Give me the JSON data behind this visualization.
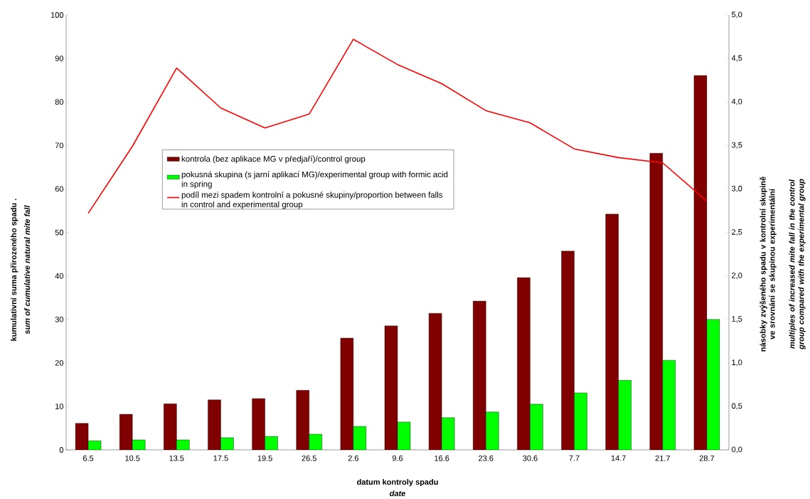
{
  "chart_data": {
    "type": "bar",
    "categories": [
      "6.5",
      "10.5",
      "13.5",
      "17.5",
      "19.5",
      "26.5",
      "2.6",
      "9.6",
      "16.6",
      "23.6",
      "30.6",
      "7.7",
      "14.7",
      "21.7",
      "28.7"
    ],
    "series": [
      {
        "name": "kontrola (bez aplikace MG v předjaří)/control group",
        "color": "#800000",
        "values": [
          6.1,
          8.2,
          10.6,
          11.5,
          11.8,
          13.7,
          25.7,
          28.5,
          31.4,
          34.2,
          39.6,
          45.7,
          54.2,
          68.2,
          86.1
        ]
      },
      {
        "name": "pokusná skupina (s jarní aplikací MG)/experimental group with formic acid in spring",
        "color": "#00ff00",
        "values": [
          2.1,
          2.3,
          2.3,
          2.8,
          3.1,
          3.6,
          5.4,
          6.4,
          7.4,
          8.7,
          10.5,
          13.1,
          16.0,
          20.6,
          30.0
        ]
      },
      {
        "name": "podíl mezi spadem kontrolní a pokusné skupiny/proportion between falls in control and experimental group",
        "type": "line",
        "axis": "y2",
        "color": "#ff0000",
        "values": [
          2.72,
          3.49,
          4.39,
          3.93,
          3.7,
          3.86,
          4.72,
          4.43,
          4.21,
          3.9,
          3.76,
          3.46,
          3.36,
          3.3,
          2.86
        ]
      }
    ],
    "ylim": [
      0,
      100
    ],
    "yticks": [
      0,
      10,
      20,
      30,
      40,
      50,
      60,
      70,
      80,
      90,
      100
    ],
    "y2lim": [
      0,
      5
    ],
    "y2ticks": [
      {
        "value": 0,
        "label": "0,0"
      },
      {
        "value": 0.5,
        "label": "0,5"
      },
      {
        "value": 1,
        "label": "1,0"
      },
      {
        "value": 1.5,
        "label": "1,5"
      },
      {
        "value": 2,
        "label": "2,0"
      },
      {
        "value": 2.5,
        "label": "2,5"
      },
      {
        "value": 3,
        "label": "3,0"
      },
      {
        "value": 3.5,
        "label": "3,5"
      },
      {
        "value": 4,
        "label": "4,0"
      },
      {
        "value": 4.5,
        "label": "4,5"
      },
      {
        "value": 5,
        "label": "5,0"
      }
    ],
    "ylabel": "kumulativní suma přirozeného spadu  .",
    "y2label": "násobky zvýšeného spadu v kontrolní skupině ve srovnání se skupinou experimentální",
    "xlabel": "datum kontroly spadu",
    "annotations": [
      "sum of cumulative natural mite fall",
      "multiples of increased mite fall in the control group compared with the experimental group",
      "date"
    ],
    "legend": "left",
    "grid": false
  }
}
